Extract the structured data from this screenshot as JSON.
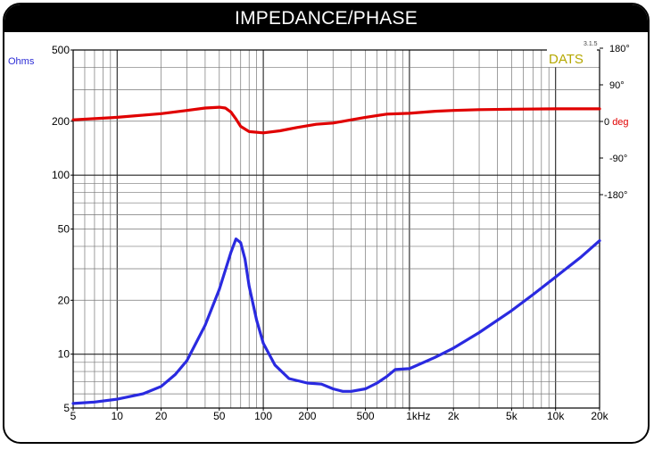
{
  "header": {
    "title": "IMPEDANCE/PHASE"
  },
  "brand": {
    "logo_text": "DATS",
    "version": "3.1.5"
  },
  "colors": {
    "impedance": "#2a2ae0",
    "phase": "#e00000",
    "grid_major": "#222222",
    "grid_minor": "#777777"
  },
  "chart_data": {
    "type": "line",
    "title": "IMPEDANCE/PHASE",
    "x_scale": "log",
    "xlim": [
      5,
      20000
    ],
    "x_tick_labels": [
      "5",
      "10",
      "20",
      "50",
      "100",
      "200",
      "500",
      "1kHz",
      "2k",
      "5k",
      "10k",
      "20k"
    ],
    "left_axis": {
      "label": "Ohms",
      "scale": "log",
      "ylim": [
        5,
        500
      ],
      "tick_labels": [
        "500",
        "200",
        "100",
        "50",
        "20",
        "10",
        "5"
      ]
    },
    "right_axis": {
      "label_prefix": "0 ",
      "label_unit": "deg",
      "ylim": [
        -180,
        180
      ],
      "tick_labels": [
        "180°",
        "90°",
        "0",
        "-90°",
        "-180°"
      ]
    },
    "grid": true,
    "series": [
      {
        "name": "Impedance",
        "axis": "left",
        "x": [
          5,
          7,
          10,
          15,
          20,
          25,
          30,
          40,
          50,
          60,
          65,
          70,
          75,
          80,
          90,
          100,
          120,
          150,
          200,
          250,
          300,
          350,
          400,
          500,
          600,
          700,
          800,
          1000,
          1500,
          2000,
          3000,
          5000,
          7000,
          10000,
          15000,
          20000
        ],
        "values": [
          5.3,
          5.4,
          5.6,
          6.0,
          6.6,
          7.7,
          9.2,
          14.5,
          23,
          37,
          44,
          42,
          34,
          24,
          15.5,
          11.5,
          8.7,
          7.3,
          6.9,
          6.8,
          6.4,
          6.2,
          6.2,
          6.4,
          6.9,
          7.5,
          8.2,
          8.3,
          9.6,
          10.8,
          13.2,
          17.5,
          21.5,
          27,
          35,
          43
        ]
      },
      {
        "name": "Phase",
        "axis": "right",
        "x": [
          5,
          10,
          20,
          30,
          40,
          50,
          55,
          60,
          65,
          70,
          80,
          100,
          130,
          170,
          230,
          300,
          400,
          500,
          700,
          1000,
          1500,
          2000,
          3000,
          5000,
          10000,
          20000
        ],
        "values": [
          4,
          10,
          19,
          27,
          33,
          35,
          33,
          23,
          6,
          -12,
          -25,
          -28,
          -23,
          -15,
          -7,
          -4,
          4,
          10,
          18,
          20,
          25,
          27,
          29,
          30,
          31,
          31
        ]
      }
    ]
  }
}
